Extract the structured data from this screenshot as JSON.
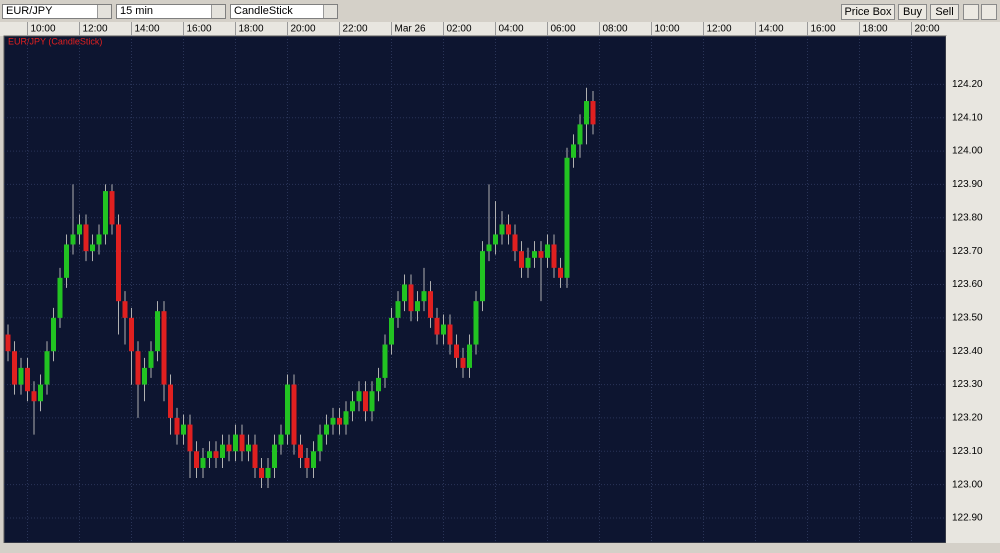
{
  "toolbar": {
    "symbol": "EUR/JPY",
    "interval": "15 min",
    "chart_type": "CandleStick",
    "buttons": [
      "Price Box",
      "Buy",
      "Sell"
    ]
  },
  "chart_data": {
    "type": "candlestick",
    "title": "EUR/JPY (CandleStick)",
    "up_color": "#22c322",
    "down_color": "#e02020",
    "grid": true,
    "x": [
      "09:15",
      "09:30",
      "09:45",
      "10:00",
      "10:15",
      "10:30",
      "10:45",
      "11:00",
      "11:15",
      "11:30",
      "11:45",
      "12:00",
      "12:15",
      "12:30",
      "12:45",
      "13:00",
      "13:15",
      "13:30",
      "13:45",
      "14:00",
      "14:15",
      "14:30",
      "14:45",
      "15:00",
      "15:15",
      "15:30",
      "15:45",
      "16:00",
      "16:15",
      "16:30",
      "16:45",
      "17:00",
      "17:15",
      "17:30",
      "17:45",
      "18:00",
      "18:15",
      "18:30",
      "18:45",
      "19:00",
      "19:15",
      "19:30",
      "19:45",
      "20:00",
      "20:15",
      "20:30",
      "20:45",
      "21:00",
      "21:15",
      "21:30",
      "21:45",
      "22:00",
      "22:15",
      "22:30",
      "22:45",
      "23:00",
      "23:15",
      "23:30",
      "23:45",
      "00:00",
      "00:15",
      "00:30",
      "00:45",
      "01:00",
      "01:15",
      "01:30",
      "01:45",
      "02:00",
      "02:15",
      "02:30",
      "02:45",
      "03:00",
      "03:15",
      "03:30",
      "03:45",
      "04:00",
      "04:15",
      "04:30",
      "04:45",
      "05:00",
      "05:15",
      "05:30",
      "05:45",
      "06:00",
      "06:15",
      "06:30",
      "06:45",
      "07:00",
      "07:15",
      "07:30",
      "07:45"
    ],
    "open": [
      123.45,
      123.4,
      123.3,
      123.35,
      123.28,
      123.25,
      123.3,
      123.4,
      123.5,
      123.62,
      123.72,
      123.75,
      123.78,
      123.7,
      123.72,
      123.75,
      123.88,
      123.78,
      123.55,
      123.5,
      123.4,
      123.3,
      123.35,
      123.4,
      123.52,
      123.3,
      123.2,
      123.15,
      123.18,
      123.1,
      123.05,
      123.08,
      123.1,
      123.08,
      123.12,
      123.1,
      123.15,
      123.1,
      123.12,
      123.05,
      123.02,
      123.05,
      123.12,
      123.15,
      123.3,
      123.12,
      123.08,
      123.05,
      123.1,
      123.15,
      123.18,
      123.2,
      123.18,
      123.22,
      123.25,
      123.28,
      123.22,
      123.28,
      123.32,
      123.42,
      123.5,
      123.55,
      123.6,
      123.52,
      123.55,
      123.58,
      123.5,
      123.45,
      123.48,
      123.42,
      123.38,
      123.35,
      123.42,
      123.55,
      123.7,
      123.72,
      123.75,
      123.78,
      123.75,
      123.7,
      123.65,
      123.68,
      123.7,
      123.68,
      123.72,
      123.65,
      123.62,
      123.98,
      124.02,
      124.08,
      124.15
    ],
    "high": [
      123.48,
      123.43,
      123.38,
      123.38,
      123.31,
      123.33,
      123.43,
      123.53,
      123.65,
      123.75,
      123.9,
      123.81,
      123.81,
      123.75,
      123.78,
      123.9,
      123.9,
      123.81,
      123.58,
      123.53,
      123.43,
      123.38,
      123.43,
      123.55,
      123.55,
      123.33,
      123.23,
      123.21,
      123.21,
      123.13,
      123.11,
      123.13,
      123.13,
      123.15,
      123.15,
      123.18,
      123.18,
      123.15,
      123.15,
      123.08,
      123.08,
      123.15,
      123.18,
      123.33,
      123.33,
      123.15,
      123.11,
      123.13,
      123.18,
      123.21,
      123.23,
      123.23,
      123.25,
      123.28,
      123.31,
      123.31,
      123.31,
      123.35,
      123.45,
      123.53,
      123.58,
      123.63,
      123.63,
      123.58,
      123.65,
      123.61,
      123.53,
      123.51,
      123.51,
      123.45,
      123.41,
      123.45,
      123.58,
      123.73,
      123.9,
      123.85,
      123.82,
      123.81,
      123.78,
      123.73,
      123.71,
      123.73,
      123.73,
      123.75,
      123.75,
      123.68,
      124.01,
      124.05,
      124.11,
      124.19,
      124.18
    ],
    "low": [
      123.37,
      123.27,
      123.27,
      123.25,
      123.15,
      123.22,
      123.27,
      123.37,
      123.47,
      123.59,
      123.69,
      123.72,
      123.67,
      123.67,
      123.69,
      123.72,
      123.75,
      123.45,
      123.42,
      123.3,
      123.2,
      123.25,
      123.32,
      123.37,
      123.25,
      123.15,
      123.12,
      123.12,
      123.02,
      123.02,
      123.02,
      123.05,
      123.05,
      123.05,
      123.07,
      123.07,
      123.07,
      123.07,
      123.02,
      122.99,
      122.99,
      123.02,
      123.09,
      123.12,
      123.09,
      123.05,
      123.02,
      123.02,
      123.07,
      123.12,
      123.15,
      123.15,
      123.15,
      123.19,
      123.22,
      123.19,
      123.19,
      123.25,
      123.29,
      123.39,
      123.47,
      123.52,
      123.49,
      123.49,
      123.52,
      123.47,
      123.42,
      123.42,
      123.39,
      123.35,
      123.32,
      123.32,
      123.39,
      123.52,
      123.67,
      123.69,
      123.72,
      123.72,
      123.67,
      123.62,
      123.62,
      123.65,
      123.55,
      123.65,
      123.62,
      123.59,
      123.59,
      123.95,
      123.98,
      124.02,
      124.05
    ],
    "close": [
      123.4,
      123.3,
      123.35,
      123.28,
      123.25,
      123.3,
      123.4,
      123.5,
      123.62,
      123.72,
      123.75,
      123.78,
      123.7,
      123.72,
      123.75,
      123.88,
      123.78,
      123.55,
      123.5,
      123.4,
      123.3,
      123.35,
      123.4,
      123.52,
      123.3,
      123.2,
      123.15,
      123.18,
      123.1,
      123.05,
      123.08,
      123.1,
      123.08,
      123.12,
      123.1,
      123.15,
      123.1,
      123.12,
      123.05,
      123.02,
      123.05,
      123.12,
      123.15,
      123.3,
      123.12,
      123.08,
      123.05,
      123.1,
      123.15,
      123.18,
      123.2,
      123.18,
      123.22,
      123.25,
      123.28,
      123.22,
      123.28,
      123.32,
      123.42,
      123.5,
      123.55,
      123.6,
      123.52,
      123.55,
      123.58,
      123.5,
      123.45,
      123.48,
      123.42,
      123.38,
      123.35,
      123.42,
      123.55,
      123.7,
      123.72,
      123.75,
      123.78,
      123.75,
      123.7,
      123.65,
      123.68,
      123.7,
      123.68,
      123.72,
      123.65,
      123.62,
      123.98,
      124.02,
      124.08,
      124.15,
      124.08
    ],
    "xticks": [
      "10:00",
      "12:00",
      "14:00",
      "16:00",
      "18:00",
      "20:00",
      "22:00",
      {
        "value": "00:00",
        "label": "Mar 26"
      },
      "02:00",
      "04:00",
      "06:00",
      "08:00",
      "10:00",
      "12:00",
      "14:00",
      "16:00",
      "18:00",
      "20:00"
    ],
    "ylim": [
      122.825,
      124.345
    ],
    "yticks": [
      {
        "value": 122.9,
        "label": "122.90"
      },
      {
        "value": 123.0,
        "label": "123.00"
      },
      {
        "value": 123.1,
        "label": "123.10"
      },
      {
        "value": 123.2,
        "label": "123.20"
      },
      {
        "value": 123.3,
        "label": "123.30"
      },
      {
        "value": 123.4,
        "label": "123.40"
      },
      {
        "value": 123.5,
        "label": "123.50"
      },
      {
        "value": 123.6,
        "label": "123.60"
      },
      {
        "value": 123.7,
        "label": "123.70"
      },
      {
        "value": 123.8,
        "label": "123.80"
      },
      {
        "value": 123.9,
        "label": "123.90"
      },
      {
        "value": 124.0,
        "label": "124.00"
      },
      {
        "value": 124.1,
        "label": "124.10"
      },
      {
        "value": 124.2,
        "label": "124.20"
      }
    ]
  }
}
